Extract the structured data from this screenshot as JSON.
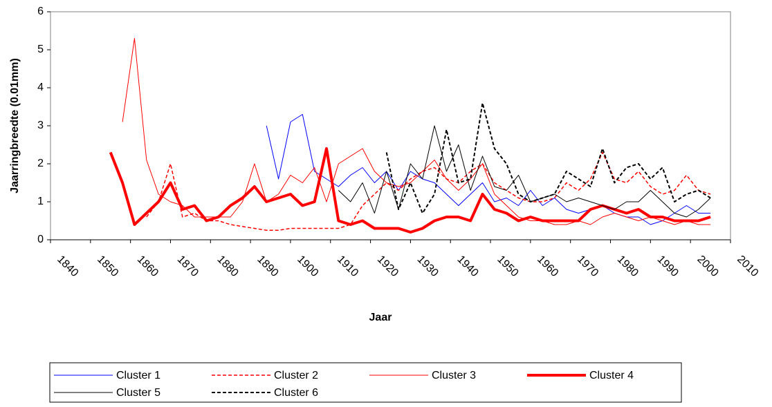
{
  "chart_data": {
    "type": "line",
    "y_label": "Jaarringbreedte (0.01mm)",
    "x_label": "Jaar",
    "x": [
      1855,
      1858,
      1861,
      1864,
      1867,
      1870,
      1873,
      1876,
      1879,
      1882,
      1885,
      1888,
      1891,
      1894,
      1897,
      1900,
      1903,
      1906,
      1909,
      1912,
      1915,
      1918,
      1921,
      1924,
      1927,
      1930,
      1933,
      1936,
      1939,
      1942,
      1945,
      1948,
      1951,
      1954,
      1957,
      1960,
      1963,
      1966,
      1969,
      1972,
      1975,
      1978,
      1981,
      1984,
      1987,
      1990,
      1993,
      1996,
      1999,
      2002,
      2005
    ],
    "series": [
      {
        "name": "Cluster 1",
        "color": "#0000ff",
        "line_width": 1,
        "dashed": false,
        "values": [
          null,
          null,
          null,
          null,
          null,
          null,
          null,
          null,
          null,
          null,
          null,
          null,
          null,
          3.0,
          1.6,
          3.1,
          3.3,
          1.8,
          1.6,
          1.4,
          1.7,
          1.9,
          1.5,
          1.8,
          1.3,
          1.8,
          1.6,
          1.5,
          1.2,
          0.9,
          1.2,
          1.5,
          1.0,
          1.1,
          0.9,
          1.3,
          0.9,
          1.1,
          0.8,
          0.7,
          0.8,
          0.9,
          0.7,
          0.6,
          0.6,
          0.4,
          0.5,
          0.7,
          0.9,
          0.7,
          0.7
        ]
      },
      {
        "name": "Cluster 2",
        "color": "#ff0000",
        "line_width": 1.5,
        "dashed": true,
        "values": [
          null,
          null,
          null,
          0.6,
          1.0,
          2.0,
          0.6,
          0.7,
          0.5,
          0.5,
          0.4,
          0.35,
          0.3,
          0.25,
          0.25,
          0.3,
          0.3,
          0.3,
          0.3,
          0.3,
          0.4,
          0.9,
          1.2,
          1.5,
          1.3,
          1.6,
          1.8,
          1.9,
          1.6,
          1.5,
          1.8,
          2.0,
          1.5,
          1.3,
          1.1,
          1.0,
          1.0,
          1.1,
          1.5,
          1.3,
          1.6,
          2.3,
          1.6,
          1.5,
          1.8,
          1.4,
          1.2,
          1.3,
          1.7,
          1.3,
          1.2
        ]
      },
      {
        "name": "Cluster 3",
        "color": "#ff0000",
        "line_width": 1,
        "dashed": false,
        "values": [
          null,
          3.1,
          5.3,
          2.1,
          1.2,
          1.0,
          0.9,
          0.6,
          0.6,
          0.6,
          0.6,
          1.0,
          2.0,
          1.0,
          1.2,
          1.7,
          1.5,
          1.9,
          1.0,
          2.0,
          2.2,
          2.4,
          1.8,
          1.5,
          1.4,
          1.5,
          1.8,
          2.1,
          1.6,
          1.3,
          1.6,
          2.0,
          1.2,
          0.9,
          0.6,
          0.5,
          0.5,
          0.4,
          0.4,
          0.5,
          0.4,
          0.6,
          0.7,
          0.6,
          0.5,
          0.6,
          0.5,
          0.4,
          0.5,
          0.4,
          0.4
        ]
      },
      {
        "name": "Cluster 4",
        "color": "#ff0000",
        "line_width": 4,
        "dashed": false,
        "values": [
          2.3,
          1.5,
          0.4,
          0.7,
          1.0,
          1.5,
          0.8,
          0.9,
          0.5,
          0.6,
          0.9,
          1.1,
          1.4,
          1.0,
          1.1,
          1.2,
          0.9,
          1.0,
          2.4,
          0.5,
          0.4,
          0.5,
          0.3,
          0.3,
          0.3,
          0.2,
          0.3,
          0.5,
          0.6,
          0.6,
          0.5,
          1.2,
          0.8,
          0.7,
          0.5,
          0.6,
          0.5,
          0.5,
          0.5,
          0.5,
          0.8,
          0.9,
          0.8,
          0.7,
          0.8,
          0.6,
          0.6,
          0.5,
          0.5,
          0.5,
          0.6
        ]
      },
      {
        "name": "Cluster 5",
        "color": "#000000",
        "line_width": 1,
        "dashed": false,
        "values": [
          null,
          null,
          null,
          null,
          null,
          null,
          null,
          null,
          null,
          null,
          null,
          null,
          null,
          null,
          null,
          null,
          null,
          null,
          null,
          1.3,
          1.0,
          1.5,
          0.7,
          1.8,
          0.8,
          2.0,
          1.6,
          3.0,
          1.8,
          2.5,
          1.3,
          2.2,
          1.4,
          1.3,
          1.7,
          1.0,
          1.1,
          1.2,
          1.0,
          1.1,
          1.0,
          0.9,
          0.8,
          1.0,
          1.0,
          1.3,
          1.0,
          0.7,
          0.6,
          0.8,
          1.1
        ]
      },
      {
        "name": "Cluster 6",
        "color": "#000000",
        "line_width": 2,
        "dashed": true,
        "values": [
          null,
          null,
          null,
          null,
          null,
          null,
          null,
          null,
          null,
          null,
          null,
          null,
          null,
          null,
          null,
          null,
          null,
          null,
          null,
          null,
          null,
          null,
          null,
          2.3,
          0.8,
          1.5,
          0.7,
          1.2,
          2.9,
          1.5,
          1.6,
          3.6,
          2.4,
          2.0,
          1.2,
          1.0,
          1.1,
          1.2,
          1.8,
          1.6,
          1.4,
          2.4,
          1.5,
          1.9,
          2.0,
          1.6,
          1.9,
          1.0,
          1.2,
          1.3,
          1.1
        ]
      }
    ],
    "xlim": [
      1840,
      2010
    ],
    "xticks": [
      1840,
      1850,
      1860,
      1870,
      1880,
      1890,
      1900,
      1910,
      1920,
      1930,
      1940,
      1950,
      1960,
      1970,
      1980,
      1990,
      2000,
      2010
    ],
    "ylim": [
      0,
      6
    ],
    "yticks": [
      0,
      1,
      2,
      3,
      4,
      5,
      6
    ],
    "grid": false,
    "legend": "bottom"
  }
}
